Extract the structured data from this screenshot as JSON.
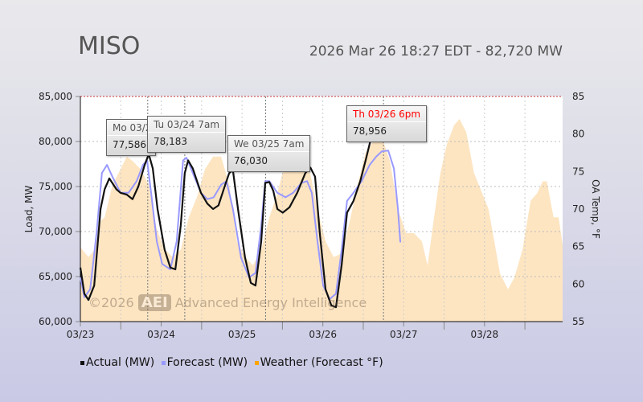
{
  "header": {
    "title": "MISO",
    "subtitle": "2026 Mar 26 18:27 EDT - 82,720 MW"
  },
  "watermark": {
    "year": "©2026",
    "logo": "AEI",
    "name": "Advanced Energy Intelligence"
  },
  "tooltips": [
    {
      "title": "Mo 03/23 8pm",
      "value": "77,586",
      "hour": 20,
      "title_color": "#555555"
    },
    {
      "title": "Tu 03/24 7am",
      "value": "78,183",
      "hour": 31,
      "title_color": "#555555"
    },
    {
      "title": "We 03/25 7am",
      "value": "76,030",
      "hour": 55,
      "title_color": "#555555"
    },
    {
      "title": "Th 03/26 6pm",
      "value": "78,956",
      "hour": 90,
      "title_color": "#ff0000"
    }
  ],
  "legend": [
    {
      "label": "Actual (MW)",
      "color": "#111111"
    },
    {
      "label": "Forecast (MW)",
      "color": "#9999ff"
    },
    {
      "label": "Weather (Forecast °F)",
      "color": "#ffa500"
    }
  ],
  "chart_data": {
    "type": "line",
    "title": "MISO",
    "xlabel": "",
    "ylabel": "Load, MW",
    "y2label": "OA Temp, °F",
    "xlim_hours": [
      0,
      143.5
    ],
    "x_ticks": [
      {
        "label": "03/23",
        "hour": 0
      },
      {
        "label": "03/24",
        "hour": 24
      },
      {
        "label": "03/25",
        "hour": 48
      },
      {
        "label": "03/26",
        "hour": 72
      },
      {
        "label": "03/27",
        "hour": 96
      },
      {
        "label": "03/28",
        "hour": 120
      }
    ],
    "ylim": [
      60000,
      85000
    ],
    "y_ticks": [
      "60,000",
      "65,000",
      "70,000",
      "75,000",
      "80,000",
      "85,000"
    ],
    "y2lim": [
      55,
      85
    ],
    "y2_ticks": [
      "55",
      "60",
      "65",
      "70",
      "75",
      "80",
      "85"
    ],
    "grid": true,
    "legend_position": "bottom",
    "series": [
      {
        "name": "Actual (MW)",
        "color": "#111111",
        "axis": "left",
        "points": [
          [
            0,
            66000
          ],
          [
            1.2,
            63100
          ],
          [
            2.4,
            62400
          ],
          [
            4.1,
            64000
          ],
          [
            6,
            72500
          ],
          [
            7.2,
            74700
          ],
          [
            8.6,
            75900
          ],
          [
            10.7,
            74700
          ],
          [
            11.9,
            74300
          ],
          [
            13.8,
            74100
          ],
          [
            15.5,
            73600
          ],
          [
            17.2,
            75000
          ],
          [
            19.1,
            77400
          ],
          [
            20.3,
            78600
          ],
          [
            21.5,
            77000
          ],
          [
            22.9,
            72500
          ],
          [
            25,
            68000
          ],
          [
            26.7,
            66000
          ],
          [
            28.2,
            65800
          ],
          [
            29.8,
            70700
          ],
          [
            31,
            76500
          ],
          [
            32,
            77900
          ],
          [
            33.4,
            77000
          ],
          [
            35.8,
            74300
          ],
          [
            37.7,
            73100
          ],
          [
            39.4,
            72500
          ],
          [
            41,
            72900
          ],
          [
            43,
            75200
          ],
          [
            44.2,
            76500
          ],
          [
            45.3,
            76800
          ],
          [
            46.8,
            72500
          ],
          [
            48.9,
            67100
          ],
          [
            50.6,
            64300
          ],
          [
            52,
            64000
          ],
          [
            53.7,
            68900
          ],
          [
            54.9,
            75400
          ],
          [
            56.1,
            75500
          ],
          [
            57.3,
            74500
          ],
          [
            58.5,
            72500
          ],
          [
            60.1,
            72100
          ],
          [
            62.1,
            72700
          ],
          [
            64.4,
            74300
          ],
          [
            66.8,
            76500
          ],
          [
            68.3,
            77100
          ],
          [
            69.7,
            76100
          ],
          [
            71.1,
            69800
          ],
          [
            72.8,
            63600
          ],
          [
            74.5,
            61800
          ],
          [
            75.9,
            61600
          ],
          [
            77.6,
            66300
          ],
          [
            79.2,
            72100
          ],
          [
            81.1,
            73400
          ],
          [
            83.1,
            75600
          ],
          [
            84.7,
            77900
          ],
          [
            86.4,
            80500
          ],
          [
            88.3,
            82300
          ],
          [
            90.2,
            83200
          ]
        ]
      },
      {
        "name": "Forecast (MW)",
        "color": "#9999ff",
        "axis": "left",
        "points": [
          [
            0,
            64900
          ],
          [
            1.2,
            62700
          ],
          [
            2.9,
            63600
          ],
          [
            4.8,
            69800
          ],
          [
            6.4,
            76500
          ],
          [
            7.9,
            77400
          ],
          [
            9.5,
            76100
          ],
          [
            11.9,
            74300
          ],
          [
            14.3,
            74300
          ],
          [
            16.7,
            75600
          ],
          [
            18.6,
            77400
          ],
          [
            19.8,
            77900
          ],
          [
            21,
            74300
          ],
          [
            22.7,
            68900
          ],
          [
            24.3,
            66400
          ],
          [
            26.7,
            65800
          ],
          [
            28.6,
            68900
          ],
          [
            30.5,
            77900
          ],
          [
            31.5,
            78200
          ],
          [
            33.4,
            76500
          ],
          [
            35.8,
            74300
          ],
          [
            37.7,
            73600
          ],
          [
            39.6,
            73800
          ],
          [
            41.8,
            75200
          ],
          [
            43.4,
            75600
          ],
          [
            45.3,
            72500
          ],
          [
            47.7,
            67100
          ],
          [
            50.1,
            64900
          ],
          [
            52,
            65400
          ],
          [
            53.7,
            70700
          ],
          [
            54.9,
            75600
          ],
          [
            56.1,
            75600
          ],
          [
            58.5,
            74300
          ],
          [
            60.9,
            73800
          ],
          [
            63.2,
            74300
          ],
          [
            65.6,
            75400
          ],
          [
            67.3,
            75600
          ],
          [
            68.7,
            74300
          ],
          [
            70.4,
            68900
          ],
          [
            72.1,
            64000
          ],
          [
            74,
            62500
          ],
          [
            75.9,
            63100
          ],
          [
            77.6,
            68000
          ],
          [
            79.2,
            73400
          ],
          [
            81.1,
            74300
          ],
          [
            83.5,
            75600
          ],
          [
            85.9,
            77400
          ],
          [
            87.8,
            78300
          ],
          [
            89.5,
            78900
          ],
          [
            91.4,
            79000
          ],
          [
            93.1,
            77000
          ],
          [
            94.3,
            72500
          ],
          [
            95,
            68800
          ]
        ]
      },
      {
        "name": "Weather (Forecast °F)",
        "color": "#ffa500",
        "fill": "#fde5c2",
        "axis": "right",
        "points": [
          [
            0,
            64.9
          ],
          [
            2.4,
            63.6
          ],
          [
            4.3,
            64.6
          ],
          [
            6,
            68.4
          ],
          [
            7.2,
            68.9
          ],
          [
            9.5,
            73.2
          ],
          [
            11.9,
            75.3
          ],
          [
            13.8,
            77
          ],
          [
            15.5,
            76.4
          ],
          [
            17.9,
            75.3
          ],
          [
            20.3,
            73.2
          ],
          [
            22.7,
            67.3
          ],
          [
            25,
            64.6
          ],
          [
            27.4,
            63.6
          ],
          [
            29.8,
            64.6
          ],
          [
            32.2,
            68.9
          ],
          [
            34.6,
            71.6
          ],
          [
            37,
            75.3
          ],
          [
            39.4,
            77
          ],
          [
            41.8,
            77
          ],
          [
            44.2,
            73.2
          ],
          [
            46.5,
            65.7
          ],
          [
            48.9,
            63.6
          ],
          [
            51.3,
            62.5
          ],
          [
            53.7,
            64.6
          ],
          [
            56.1,
            68.9
          ],
          [
            58.5,
            72.1
          ],
          [
            60.9,
            76.4
          ],
          [
            63.2,
            78
          ],
          [
            65.6,
            77.5
          ],
          [
            68,
            75.3
          ],
          [
            70.4,
            70
          ],
          [
            72.8,
            65.7
          ],
          [
            75.2,
            63.6
          ],
          [
            77.6,
            64.1
          ],
          [
            80,
            68.4
          ],
          [
            82.3,
            73.2
          ],
          [
            84.7,
            77.5
          ],
          [
            87.1,
            79.1
          ],
          [
            89.5,
            79.6
          ],
          [
            91.9,
            76.4
          ],
          [
            94.3,
            70
          ],
          [
            96.7,
            66.8
          ],
          [
            99,
            66.8
          ],
          [
            101.4,
            65.7
          ],
          [
            103.1,
            62.5
          ],
          [
            105,
            68.9
          ],
          [
            106.9,
            74.8
          ],
          [
            108.8,
            78.6
          ],
          [
            111,
            81.2
          ],
          [
            112.6,
            82
          ],
          [
            114.6,
            80.2
          ],
          [
            116.9,
            74.8
          ],
          [
            119.3,
            72.1
          ],
          [
            121.2,
            70
          ],
          [
            122.9,
            65.7
          ],
          [
            124.6,
            61.4
          ],
          [
            127,
            59.3
          ],
          [
            128.9,
            60.9
          ],
          [
            131.3,
            64.6
          ],
          [
            133.7,
            71.1
          ],
          [
            135.6,
            72.1
          ],
          [
            137.3,
            73.7
          ],
          [
            138.5,
            73.7
          ],
          [
            140.5,
            68.9
          ],
          [
            142,
            68.9
          ],
          [
            143.2,
            65.2
          ]
        ]
      }
    ]
  }
}
